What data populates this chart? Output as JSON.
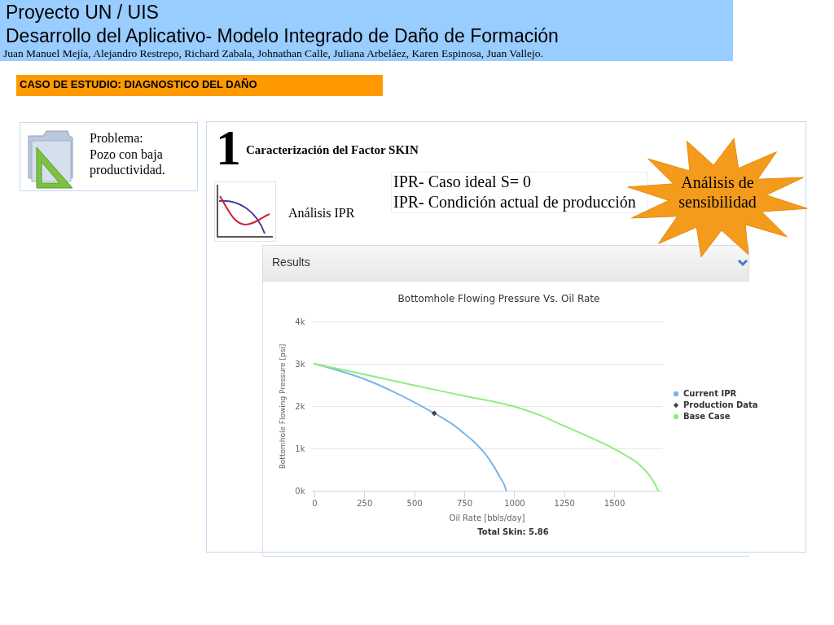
{
  "chart_data": {
    "type": "line",
    "title": "Bottomhole Flowing Pressure Vs. Oil Rate",
    "xlabel": "Oil Rate [bbls/day]",
    "ylabel": "Bottomhole Flowing Pressure [psi]",
    "series": [
      {
        "name": "Current IPR",
        "color": "#7cb5ec",
        "x": [
          0,
          100,
          250,
          400,
          500,
          600,
          700,
          750,
          800,
          850,
          900,
          930,
          950,
          960
        ],
        "values": [
          3000,
          2870,
          2640,
          2330,
          2090,
          1830,
          1540,
          1350,
          1150,
          900,
          560,
          310,
          140,
          0
        ]
      },
      {
        "name": "Production Data",
        "color": "#434348",
        "type": "scatter",
        "marker": "diamond",
        "x": [
          600
        ],
        "values": [
          1830
        ]
      },
      {
        "name": "Base Case",
        "color": "#90ed7d",
        "x": [
          0,
          250,
          500,
          750,
          1000,
          1125,
          1250,
          1375,
          1500,
          1570,
          1625,
          1680,
          1703,
          1720
        ],
        "values": [
          3000,
          2750,
          2490,
          2240,
          1990,
          1790,
          1530,
          1270,
          990,
          800,
          620,
          340,
          170,
          0
        ]
      }
    ],
    "xlim": [
      -16,
      1740
    ],
    "ylim": [
      0,
      4000
    ],
    "xticks": [
      0,
      250,
      500,
      750,
      1000,
      1250,
      1500
    ],
    "yticks": [
      {
        "value": 0,
        "label": "0k"
      },
      {
        "value": 1000,
        "label": "1k"
      },
      {
        "value": 2000,
        "label": "2k"
      },
      {
        "value": 3000,
        "label": "3k"
      },
      {
        "value": 4000,
        "label": "4k"
      }
    ],
    "grid": "y",
    "legend": "right",
    "annotations": [
      "Proyecto UN / UIS",
      "Desarrollo del Aplicativo- Modelo Integrado de Daño de Formación",
      "Juan Manuel Mejía, Alejandro Restrepo, Richard Zabala, Johnathan Calle, Juliana Arbeláez, Karen Espinosa, Juan Vallejo.",
      "CASO DE ESTUDIO: DIAGNOSTICO DEL DAÑO",
      "Problema:",
      "Pozo con baja productividad.",
      "1",
      "Caracterización del Factor SKIN",
      "IPR- Caso ideal S= 0",
      "IPR- Condición actual de producción",
      "Análisis IPR",
      "Análisis de sensibilidad",
      "Results",
      "Total Skin: 5.86"
    ]
  }
}
